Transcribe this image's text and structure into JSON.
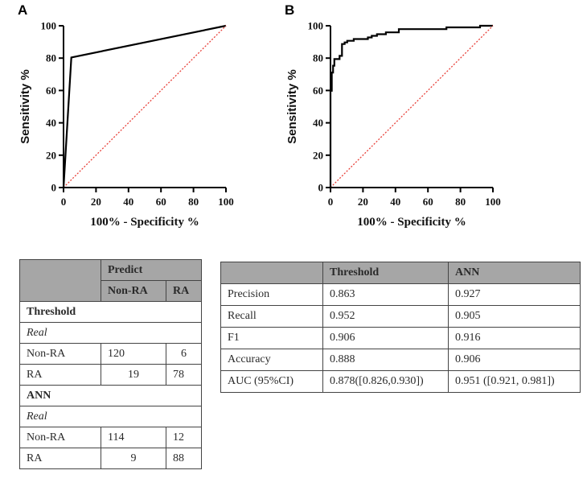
{
  "chart_data": [
    {
      "panel": "A",
      "type": "line",
      "title": "",
      "xlabel": "100% - Specificity %",
      "ylabel": "Sensitivity %",
      "xlim": [
        0,
        100
      ],
      "ylim": [
        0,
        100
      ],
      "xticks": [
        0,
        20,
        40,
        60,
        80,
        100
      ],
      "yticks": [
        0,
        20,
        40,
        60,
        80,
        100
      ],
      "grid": false,
      "series": [
        {
          "name": "ROC curve (Threshold)",
          "color": "#000000",
          "style": "solid",
          "x": [
            0,
            4.8,
            100
          ],
          "y": [
            0,
            80.4,
            100
          ]
        },
        {
          "name": "Reference line",
          "color": "#e8413a",
          "style": "dotted",
          "x": [
            0,
            100
          ],
          "y": [
            0,
            100
          ]
        }
      ]
    },
    {
      "panel": "B",
      "type": "line",
      "title": "",
      "xlabel": "100% - Specificity %",
      "ylabel": "Sensitivity %",
      "xlim": [
        0,
        100
      ],
      "ylim": [
        0,
        100
      ],
      "xticks": [
        0,
        20,
        40,
        60,
        80,
        100
      ],
      "yticks": [
        0,
        20,
        40,
        60,
        80,
        100
      ],
      "grid": false,
      "series": [
        {
          "name": "ROC curve (ANN)",
          "color": "#000000",
          "style": "solid",
          "x": [
            0,
            0,
            0.8,
            0.8,
            1.6,
            1.6,
            2.4,
            2.4,
            5.6,
            5.6,
            7.1,
            7.1,
            8.7,
            8.7,
            10.3,
            10.3,
            14.3,
            14.3,
            23.0,
            23.0,
            25.4,
            25.4,
            28.6,
            28.6,
            34.1,
            34.1,
            42.1,
            42.1,
            71.4,
            71.4,
            92.1,
            92.1,
            100
          ],
          "y": [
            0,
            59.8,
            59.8,
            71.1,
            71.1,
            75.3,
            75.3,
            79.4,
            79.4,
            81.4,
            81.4,
            88.7,
            88.7,
            89.7,
            89.7,
            90.7,
            90.7,
            91.8,
            91.8,
            92.8,
            92.8,
            93.8,
            93.8,
            94.8,
            94.8,
            95.9,
            95.9,
            97.9,
            97.9,
            99.0,
            99.0,
            100,
            100
          ]
        },
        {
          "name": "Reference line",
          "color": "#e8413a",
          "style": "dotted",
          "x": [
            0,
            100
          ],
          "y": [
            0,
            100
          ]
        }
      ]
    }
  ],
  "panels": {
    "a_label": "A",
    "b_label": "B"
  },
  "confusion_table": {
    "header": {
      "predict": "Predict",
      "non_ra": "Non-RA",
      "ra": "RA"
    },
    "sections": [
      {
        "title": "Threshold",
        "sub": "Real",
        "rows": [
          {
            "label": "Non-RA",
            "non_ra": "120",
            "ra": "6"
          },
          {
            "label": "RA",
            "non_ra": "19",
            "ra": "78"
          }
        ]
      },
      {
        "title": "ANN",
        "sub": "Real",
        "rows": [
          {
            "label": "Non-RA",
            "non_ra": "114",
            "ra": "12"
          },
          {
            "label": "RA",
            "non_ra": "9",
            "ra": "88"
          }
        ]
      }
    ]
  },
  "metrics_table": {
    "header": [
      "",
      "Threshold",
      "ANN"
    ],
    "rows": [
      {
        "metric": "Precision",
        "threshold": "0.863",
        "ann": "0.927"
      },
      {
        "metric": "Recall",
        "threshold": "0.952",
        "ann": "0.905"
      },
      {
        "metric": "F1",
        "threshold": "0.906",
        "ann": "0.916"
      },
      {
        "metric": "Accuracy",
        "threshold": "0.888",
        "ann": "0.906"
      },
      {
        "metric": "AUC (95%CI)",
        "threshold": "0.878([0.826,0.930])",
        "ann": "0.951 ([0.921, 0.981])"
      }
    ]
  }
}
